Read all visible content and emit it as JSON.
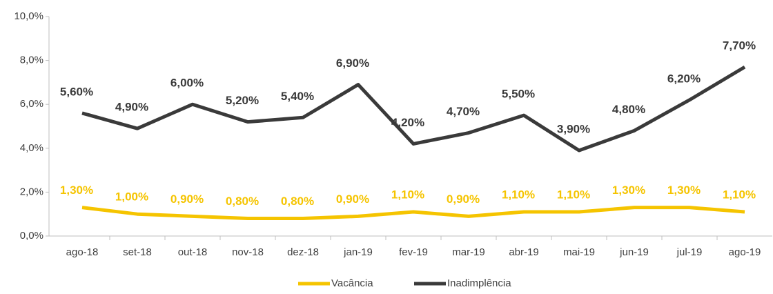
{
  "chart_data": {
    "type": "line",
    "categories": [
      "ago-18",
      "set-18",
      "out-18",
      "nov-18",
      "dez-18",
      "jan-19",
      "fev-19",
      "mar-19",
      "abr-19",
      "mai-19",
      "jun-19",
      "jul-19",
      "ago-19"
    ],
    "series": [
      {
        "name": "Vacância",
        "color": "#f5c400",
        "values": [
          1.3,
          1.0,
          0.9,
          0.8,
          0.8,
          0.9,
          1.1,
          0.9,
          1.1,
          1.1,
          1.3,
          1.3,
          1.1
        ],
        "value_labels": [
          "1,30%",
          "1,00%",
          "0,90%",
          "0,80%",
          "0,80%",
          "0,90%",
          "1,10%",
          "0,90%",
          "1,10%",
          "1,10%",
          "1,30%",
          "1,30%",
          "1,10%"
        ]
      },
      {
        "name": "Inadimplência",
        "color": "#3a3a3a",
        "values": [
          5.6,
          4.9,
          6.0,
          5.2,
          5.4,
          6.9,
          4.2,
          4.7,
          5.5,
          3.9,
          4.8,
          6.2,
          7.7
        ],
        "value_labels": [
          "5,60%",
          "4,90%",
          "6,00%",
          "5,20%",
          "5,40%",
          "6,90%",
          "4,20%",
          "4,70%",
          "5,50%",
          "3,90%",
          "4,80%",
          "6,20%",
          "7,70%"
        ]
      }
    ],
    "ylim": [
      0,
      10
    ],
    "yticks": [
      {
        "value": 0,
        "label": "0,0%"
      },
      {
        "value": 2,
        "label": "2,0%"
      },
      {
        "value": 4,
        "label": "4,0%"
      },
      {
        "value": 6,
        "label": "6,0%"
      },
      {
        "value": 8,
        "label": "8,0%"
      },
      {
        "value": 10,
        "label": "10,0%"
      }
    ],
    "legend": "bottom"
  }
}
